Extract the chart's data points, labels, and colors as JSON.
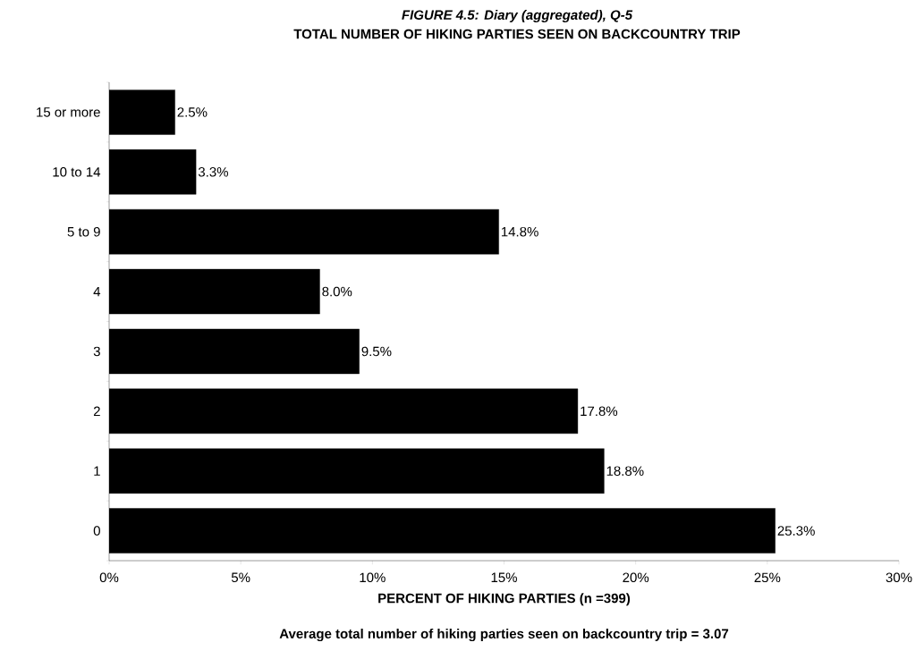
{
  "chart_data": {
    "type": "bar",
    "orientation": "horizontal",
    "title": "FIGURE 4.5: Diary (aggregated), Q-5",
    "subtitle": "TOTAL NUMBER OF HIKING PARTIES SEEN ON BACKCOUNTRY TRIP",
    "categories": [
      "15 or more",
      "10 to 14",
      "5 to 9",
      "4",
      "3",
      "2",
      "1",
      "0"
    ],
    "values": [
      2.5,
      3.3,
      14.8,
      8.0,
      9.5,
      17.8,
      18.8,
      25.3
    ],
    "value_labels": [
      "2.5%",
      "3.3%",
      "14.8%",
      "8.0%",
      "9.5%",
      "17.8%",
      "18.8%",
      "25.3%"
    ],
    "color": "#000000",
    "xlim": [
      0,
      30
    ],
    "xticks": [
      {
        "value": 0,
        "label": "0%"
      },
      {
        "value": 5,
        "label": "5%"
      },
      {
        "value": 10,
        "label": "10%"
      },
      {
        "value": 15,
        "label": "15%"
      },
      {
        "value": 20,
        "label": "20%"
      },
      {
        "value": 25,
        "label": "25%"
      },
      {
        "value": 30,
        "label": "30%"
      }
    ],
    "xlabel": "PERCENT OF HIKING PARTIES (n =399)",
    "annotations": [
      "Average total number of hiking parties seen on backcountry trip = 3.07"
    ]
  }
}
